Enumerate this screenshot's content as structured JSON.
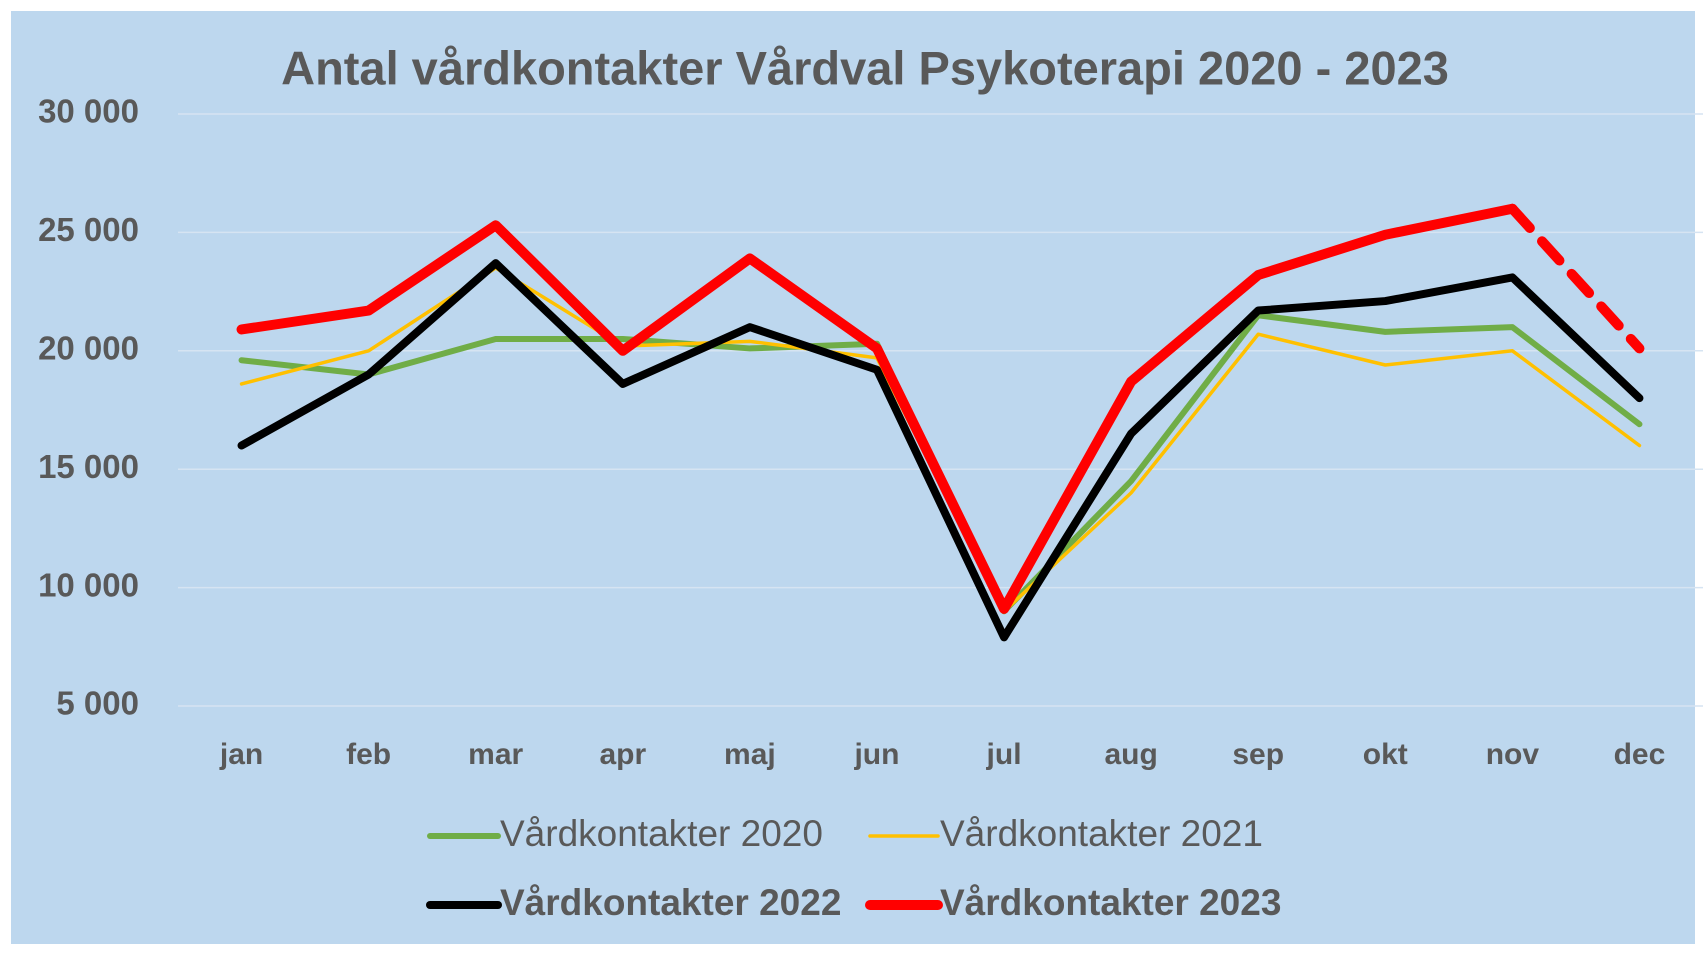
{
  "chart_data": {
    "type": "line",
    "title": "Antal vårdkontakter Vårdval Psykoterapi 2020 - 2023",
    "categories": [
      "jan",
      "feb",
      "mar",
      "apr",
      "maj",
      "jun",
      "jul",
      "aug",
      "sep",
      "okt",
      "nov",
      "dec"
    ],
    "series": [
      {
        "name": "Vårdkontakter 2020",
        "color": "#70ad47",
        "width": 6,
        "bold": false,
        "values": [
          19600,
          19000,
          20500,
          20500,
          20100,
          20300,
          9000,
          14500,
          21500,
          20800,
          21000,
          16900
        ]
      },
      {
        "name": "Vårdkontakter 2021",
        "color": "#ffc000",
        "width": 3.5,
        "bold": false,
        "values": [
          18600,
          20000,
          23500,
          20200,
          20400,
          19700,
          9000,
          14000,
          20700,
          19400,
          20000,
          16000
        ]
      },
      {
        "name": "Vårdkontakter 2022",
        "color": "#000000",
        "width": 8,
        "bold": true,
        "values": [
          16000,
          19000,
          23700,
          18600,
          21000,
          19200,
          7900,
          16500,
          21700,
          22100,
          23100,
          18000
        ]
      },
      {
        "name": "Vårdkontakter 2023",
        "color": "#ff0000",
        "width": 10,
        "bold": true,
        "dash_from_index": 10,
        "values": [
          20900,
          21700,
          25300,
          20000,
          23900,
          20100,
          9100,
          18700,
          23200,
          24900,
          26000,
          20100
        ]
      }
    ],
    "ylim": [
      5000,
      30000
    ],
    "yticks": [
      {
        "value": 5000,
        "label": "5 000"
      },
      {
        "value": 10000,
        "label": "10 000"
      },
      {
        "value": 15000,
        "label": "15 000"
      },
      {
        "value": 20000,
        "label": "20 000"
      },
      {
        "value": 25000,
        "label": "25 000"
      },
      {
        "value": 30000,
        "label": "30 000"
      }
    ],
    "grid": true,
    "legend": "bottom"
  }
}
